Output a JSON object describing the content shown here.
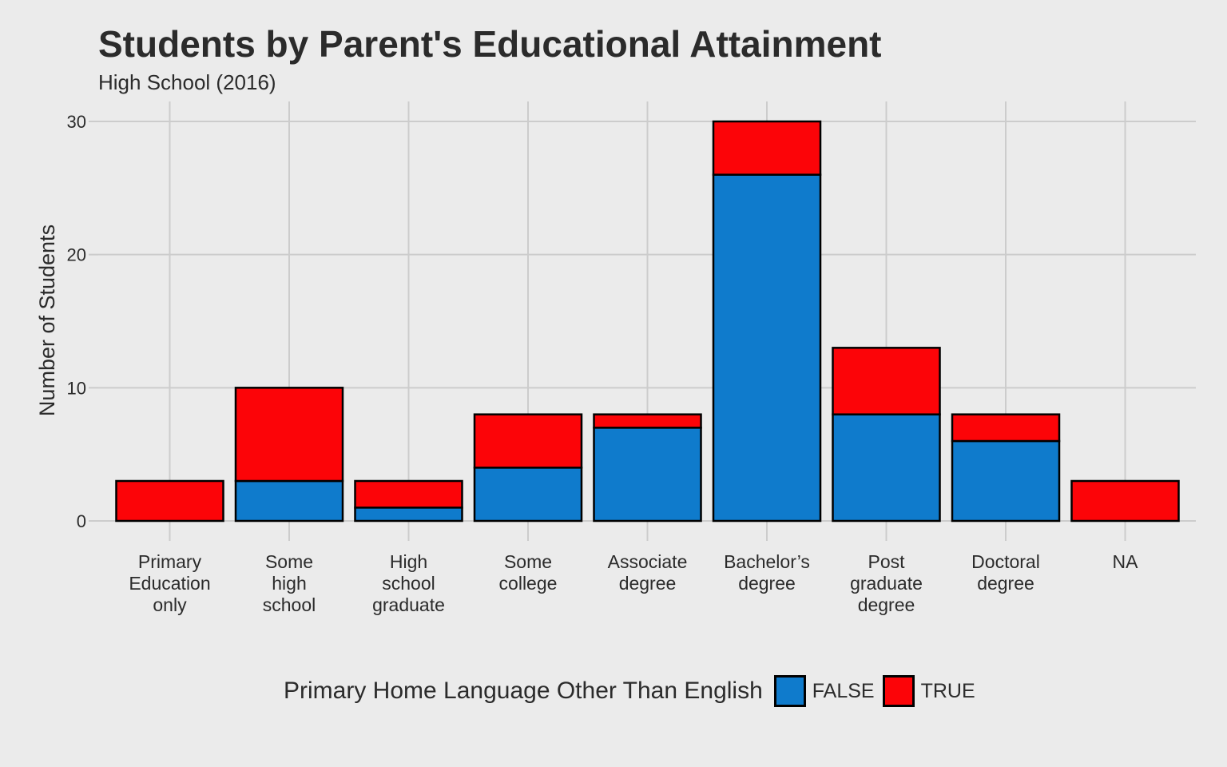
{
  "chart_data": {
    "type": "bar",
    "stacked": true,
    "title": "Students by Parent's Educational Attainment",
    "subtitle": "High School (2016)",
    "xlabel": "",
    "ylabel": "Number of Students",
    "ylim": [
      0,
      31
    ],
    "yticks": [
      0,
      10,
      20,
      30
    ],
    "grid": true,
    "legend_position": "bottom",
    "legend_title": "Primary Home Language Other Than English",
    "categories": [
      [
        "Primary",
        "Education",
        "only"
      ],
      [
        "Some",
        "high",
        "school"
      ],
      [
        "High",
        "school",
        "graduate"
      ],
      [
        "Some",
        "college"
      ],
      [
        "Associate",
        "degree"
      ],
      [
        "Bachelor’s",
        "degree"
      ],
      [
        "Post",
        "graduate",
        "degree"
      ],
      [
        "Doctoral",
        "degree"
      ],
      [
        "NA"
      ]
    ],
    "series": [
      {
        "name": "FALSE",
        "color": "#0f7bcc",
        "values": [
          0,
          3,
          1,
          4,
          7,
          26,
          8,
          6,
          0
        ]
      },
      {
        "name": "TRUE",
        "color": "#fc0408",
        "values": [
          3,
          7,
          2,
          4,
          1,
          4,
          5,
          2,
          3
        ]
      }
    ]
  }
}
